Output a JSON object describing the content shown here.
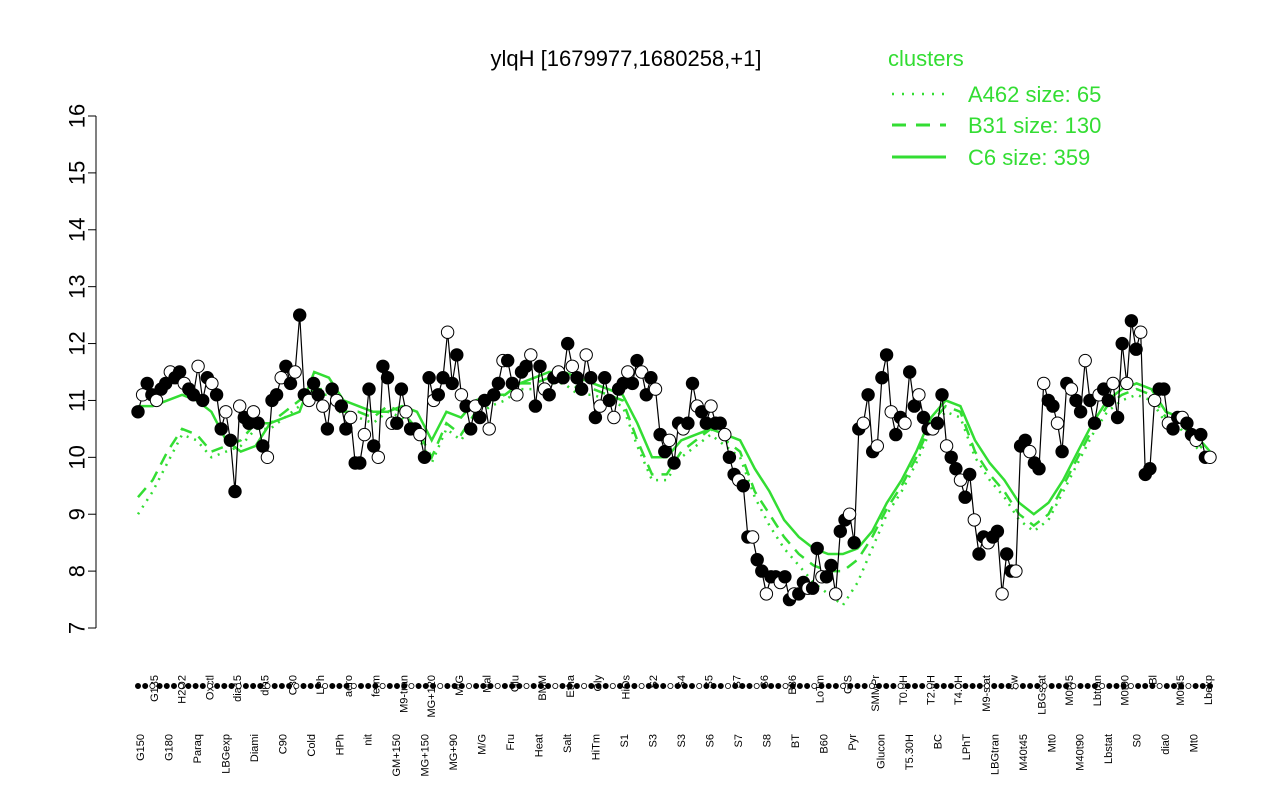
{
  "chart_data": {
    "type": "line",
    "title": "ylqH [1679977,1680258,+1]",
    "xlabel": "",
    "ylabel": "",
    "ylim": [
      7,
      16
    ],
    "yticks": [
      7,
      8,
      9,
      10,
      11,
      12,
      13,
      14,
      15,
      16
    ],
    "grid": false,
    "legend": {
      "title": "clusters",
      "placement": "top-right",
      "entries": [
        {
          "label": "A462 size: 65",
          "style": "dotted",
          "color": "#33dd33"
        },
        {
          "label": "B31 size: 130",
          "style": "dashed",
          "color": "#33dd33"
        },
        {
          "label": "C6 size: 359",
          "style": "solid",
          "color": "#33dd33"
        }
      ]
    },
    "bottom_labels": [
      "G150",
      "G180",
      "Paraq",
      "LBGexp",
      "Diami",
      "C90",
      "Cold",
      "HPh",
      "nit",
      "GM+150",
      "MG+150",
      "MG+90",
      "M/G",
      "Fru",
      "Heat",
      "Salt",
      "HiTm",
      "S1",
      "S3",
      "S3",
      "S6",
      "S7",
      "S8",
      "BT",
      "B60",
      "Pyr",
      "Glucon",
      "T5.30H",
      "BC",
      "LPhT",
      "LBGtran",
      "M40t45",
      "Mt0",
      "M40t90",
      "Lbstat",
      "S0",
      "dia0",
      "Mt0"
    ],
    "top_labels": [
      "G135",
      "H2O2",
      "Oxctl",
      "dia15",
      "dia5",
      "C30",
      "LPh",
      "aero",
      "ferm",
      "M9-tran",
      "MG+120",
      "M/G",
      "Mal",
      "Glu",
      "BMM",
      "Etha",
      "Gly",
      "HiOs",
      "S2",
      "S4",
      "S5",
      "S7",
      "S6",
      "B36",
      "LoTm",
      "G/S",
      "SMMPr",
      "T0.0H",
      "T2.0H",
      "T4.0H",
      "M9-stat",
      "Sw",
      "LBGstat",
      "M0t45",
      "Lbtran",
      "M0t90",
      "Bl",
      "M0t45",
      "Lbexp"
    ],
    "points": [
      10.8,
      11.1,
      11.3,
      11.1,
      11.0,
      11.2,
      11.3,
      11.5,
      11.4,
      11.5,
      11.3,
      11.2,
      11.1,
      11.6,
      11.0,
      11.4,
      11.3,
      11.1,
      10.5,
      10.8,
      10.3,
      9.4,
      10.9,
      10.7,
      10.6,
      10.8,
      10.6,
      10.2,
      10.0,
      11.0,
      11.1,
      11.4,
      11.6,
      11.3,
      11.5,
      12.5,
      11.1,
      11.0,
      11.3,
      11.1,
      10.9,
      10.5,
      11.2,
      11.0,
      10.9,
      10.5,
      10.7,
      9.9,
      9.9,
      10.4,
      11.2,
      10.2,
      10.0,
      11.6,
      11.4,
      10.6,
      10.6,
      11.2,
      10.8,
      10.5,
      10.5,
      10.4,
      10.0,
      11.4,
      11.0,
      11.1,
      11.4,
      12.2,
      11.3,
      11.8,
      11.1,
      10.9,
      10.5,
      10.9,
      10.7,
      11.0,
      10.5,
      11.1,
      11.3,
      11.7,
      11.7,
      11.3,
      11.1,
      11.5,
      11.6,
      11.8,
      10.9,
      11.6,
      11.2,
      11.1,
      11.4,
      11.5,
      11.4,
      12.0,
      11.6,
      11.4,
      11.2,
      11.8,
      11.4,
      10.7,
      10.9,
      11.4,
      11.0,
      10.7,
      11.2,
      11.3,
      11.5,
      11.3,
      11.7,
      11.5,
      11.1,
      11.4,
      11.2,
      10.4,
      10.1,
      10.3,
      9.9,
      10.6,
      10.5,
      10.6,
      11.3,
      10.9,
      10.8,
      10.6,
      10.9,
      10.6,
      10.6,
      10.4,
      10.0,
      9.7,
      9.6,
      9.5,
      8.6,
      8.6,
      8.2,
      8.0,
      7.6,
      7.9,
      7.9,
      7.8,
      7.9,
      7.5,
      7.6,
      7.6,
      7.8,
      7.7,
      7.7,
      8.4,
      7.9,
      7.9,
      8.1,
      7.6,
      8.7,
      8.9,
      9.0,
      8.5,
      10.5,
      10.6,
      11.1,
      10.1,
      10.2,
      11.4,
      11.8,
      10.8,
      10.4,
      10.7,
      10.6,
      11.5,
      10.9,
      11.1,
      10.7,
      10.5,
      10.5,
      10.6,
      11.1,
      10.2,
      10.0,
      9.8,
      9.6,
      9.3,
      9.7,
      8.9,
      8.3,
      8.6,
      8.5,
      8.6,
      8.7,
      7.6,
      8.3,
      8.0,
      8.0,
      10.2,
      10.3,
      10.1,
      9.9,
      9.8,
      11.3,
      11.0,
      10.9,
      10.6,
      10.1,
      11.3,
      11.2,
      11.0,
      10.8,
      11.7,
      11.0,
      10.6,
      11.1,
      11.2,
      11.0,
      11.3,
      10.7,
      12.0,
      11.3,
      12.4,
      11.9,
      12.2,
      9.7,
      9.8,
      11.0,
      11.2,
      11.2,
      10.6,
      10.5,
      10.7,
      10.7,
      10.6,
      10.4,
      10.3,
      10.4,
      10.0,
      10.0
    ],
    "cluster_mean_C6": [
      10.9,
      10.9,
      11.0,
      11.1,
      11.0,
      10.8,
      10.3,
      10.1,
      10.2,
      10.6,
      10.7,
      10.8,
      11.5,
      11.4,
      11.0,
      10.9,
      10.8,
      10.8,
      10.9,
      10.8,
      10.3,
      10.8,
      10.7,
      11.0,
      11.1,
      11.1,
      11.3,
      11.4,
      11.5,
      11.5,
      11.4,
      11.3,
      11.2,
      11.1,
      10.6,
      10.0,
      10.0,
      10.3,
      10.4,
      10.5,
      10.4,
      10.3,
      9.8,
      9.4,
      8.9,
      8.6,
      8.4,
      8.3,
      8.3,
      8.4,
      8.7,
      9.2,
      9.6,
      10.1,
      10.7,
      11.0,
      10.9,
      10.3,
      9.9,
      9.6,
      9.2,
      9.0,
      9.2,
      9.6,
      10.1,
      10.6,
      11.0,
      11.2,
      11.3,
      11.2,
      10.8,
      10.7,
      10.4,
      10.1
    ],
    "cluster_mean_B31": [
      9.3,
      9.6,
      10.1,
      10.5,
      10.4,
      10.1,
      10.2,
      10.3,
      10.6,
      10.6,
      10.8,
      11.0,
      11.2,
      11.2,
      10.8,
      10.8,
      10.7,
      10.9,
      10.8,
      10.5,
      10.0,
      10.6,
      10.4,
      10.8,
      11.0,
      11.1,
      11.3,
      11.3,
      11.4,
      11.4,
      11.2,
      11.2,
      11.1,
      11.0,
      10.3,
      9.7,
      9.7,
      10.1,
      10.3,
      10.5,
      10.3,
      10.1,
      9.4,
      9.0,
      8.6,
      8.3,
      8.1,
      8.0,
      8.0,
      8.2,
      8.6,
      9.1,
      9.5,
      10.0,
      10.6,
      10.9,
      10.8,
      10.1,
      9.7,
      9.4,
      9.0,
      8.8,
      9.0,
      9.5,
      10.0,
      10.5,
      10.9,
      11.1,
      11.2,
      11.1,
      10.7,
      10.6,
      10.3,
      10.0
    ],
    "cluster_mean_A462": [
      9.0,
      9.4,
      9.9,
      10.4,
      10.3,
      10.0,
      10.1,
      10.2,
      10.5,
      10.5,
      10.7,
      10.9,
      11.1,
      11.1,
      10.7,
      10.7,
      10.6,
      10.8,
      10.7,
      10.4,
      9.9,
      10.5,
      10.3,
      10.7,
      10.9,
      11.0,
      11.2,
      11.2,
      11.3,
      11.3,
      11.1,
      11.1,
      11.0,
      10.9,
      10.2,
      9.6,
      9.6,
      10.0,
      10.2,
      10.4,
      10.2,
      10.0,
      9.3,
      8.8,
      8.4,
      8.1,
      7.8,
      7.6,
      7.4,
      7.8,
      8.4,
      9.0,
      9.4,
      9.9,
      10.5,
      10.8,
      10.7,
      10.0,
      9.6,
      9.3,
      8.9,
      8.7,
      8.9,
      9.4,
      9.9,
      10.4,
      10.8,
      11.0,
      11.1,
      11.0,
      10.6,
      10.5,
      10.2,
      9.9
    ]
  }
}
